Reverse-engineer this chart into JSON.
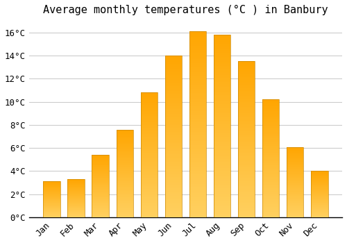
{
  "title": "Average monthly temperatures (°C ) in Banbury",
  "months": [
    "Jan",
    "Feb",
    "Mar",
    "Apr",
    "May",
    "Jun",
    "Jul",
    "Aug",
    "Sep",
    "Oct",
    "Nov",
    "Dec"
  ],
  "values": [
    3.1,
    3.3,
    5.4,
    7.6,
    10.8,
    14.0,
    16.1,
    15.8,
    13.5,
    10.2,
    6.1,
    4.0
  ],
  "bar_color_top": "#FFA500",
  "bar_color_bottom": "#FFD060",
  "bar_edge_color": "#CC8800",
  "background_color": "#FFFFFF",
  "grid_color": "#CCCCCC",
  "ylim": [
    0,
    17
  ],
  "yticks": [
    0,
    2,
    4,
    6,
    8,
    10,
    12,
    14,
    16
  ],
  "title_fontsize": 11,
  "tick_fontsize": 9,
  "font_family": "monospace"
}
